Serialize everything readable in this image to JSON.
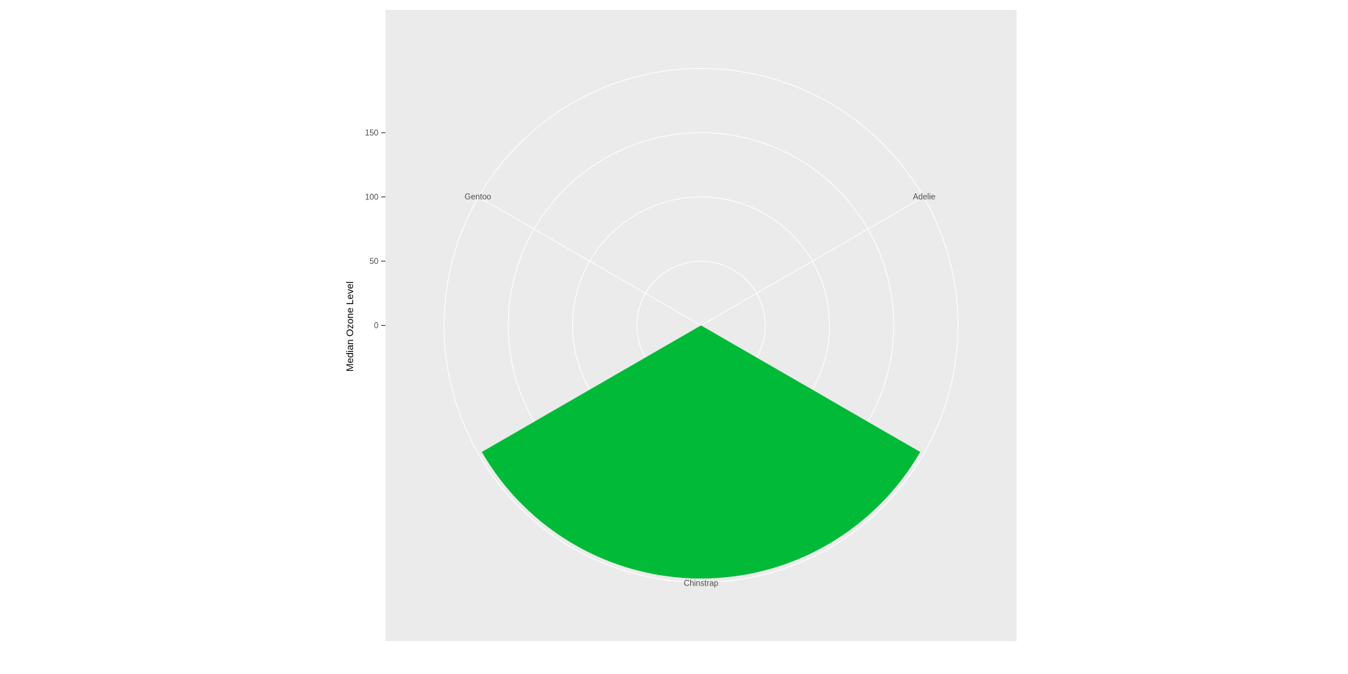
{
  "chart_data": {
    "type": "bar",
    "coord": "polar",
    "categories": [
      "Adelie",
      "Chinstrap",
      "Gentoo"
    ],
    "values": [
      0,
      197,
      0
    ],
    "ylabel": "Median Ozone Level",
    "xlabel": "",
    "title": "",
    "y_ticks": [
      0,
      50,
      100,
      150
    ],
    "ylim": [
      0,
      200
    ],
    "grid": true,
    "legend": "none",
    "colors": {
      "panel": "#ebebeb",
      "grid": "#ffffff",
      "bar": "#00ba38",
      "text": "#4d4d4d",
      "axis_title": "#000000"
    }
  }
}
